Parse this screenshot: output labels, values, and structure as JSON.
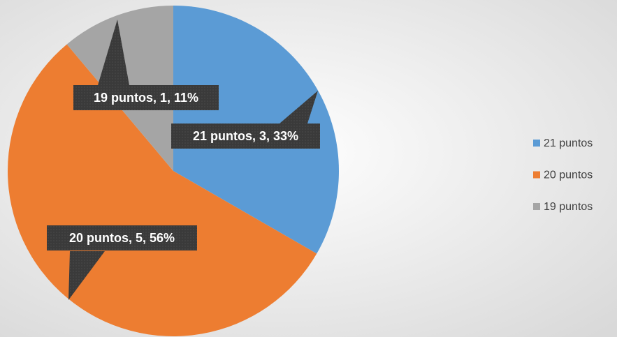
{
  "chart_data": {
    "type": "pie",
    "categories": [
      "21 puntos",
      "20 puntos",
      "19 puntos"
    ],
    "values": [
      3,
      5,
      1
    ],
    "value_labels": [
      "21 puntos, 3, 33%",
      "20 puntos, 5, 56%",
      "19 puntos, 1, 11%"
    ],
    "colors": [
      "#5b9bd5",
      "#ed7d31",
      "#a5a5a5"
    ],
    "legend": "right"
  }
}
